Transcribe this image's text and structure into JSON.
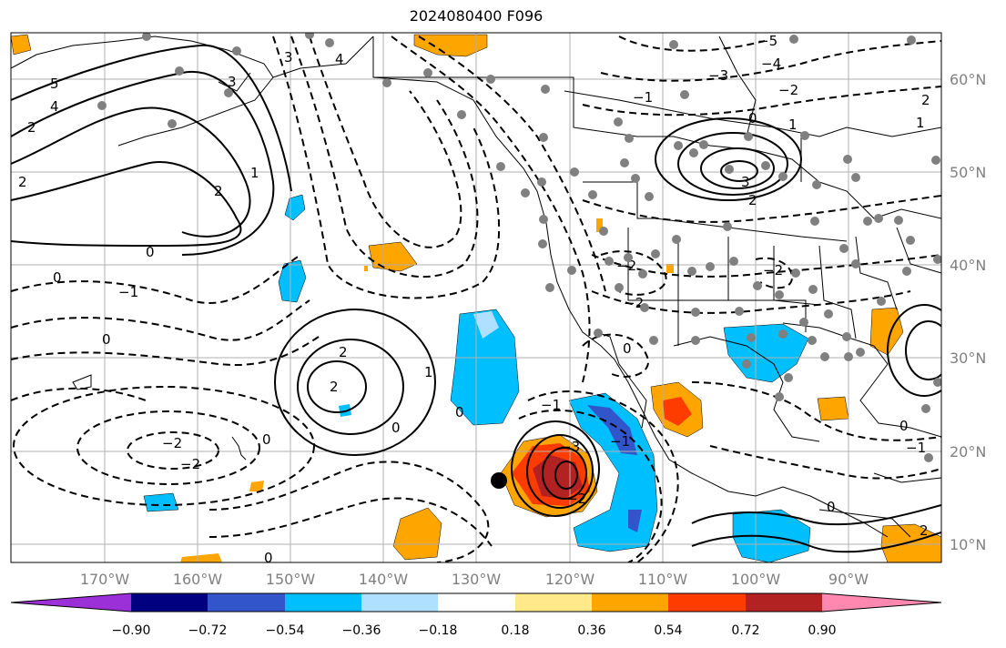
{
  "title": "2024080400 F096",
  "lat_labels": [
    "60°N",
    "50°N",
    "40°N",
    "30°N",
    "20°N",
    "10°N"
  ],
  "lon_labels": [
    "170°W",
    "160°W",
    "150°W",
    "140°W",
    "130°W",
    "120°W",
    "110°W",
    "100°W",
    "90°W"
  ],
  "colorbar": {
    "ticks": [
      "−0.90",
      "−0.72",
      "−0.54",
      "−0.36",
      "−0.18",
      "0.18",
      "0.36",
      "0.54",
      "0.72",
      "0.90"
    ],
    "colors": [
      "#9b30d9",
      "#000080",
      "#3355cc",
      "#00bfff",
      "#b0e0ff",
      "#ffffff",
      "#ffe98a",
      "#ffa500",
      "#ff3c00",
      "#b22222",
      "#ff88b0"
    ]
  },
  "contour_labels": [
    "5",
    "4",
    "3",
    "2",
    "2",
    "2",
    "1",
    "0",
    "0",
    "−1",
    "0",
    "−2",
    "−2",
    "2",
    "2",
    "1",
    "0",
    "0",
    "−3",
    "−2",
    "−1",
    "3",
    "0",
    "−1",
    "0",
    "−5",
    "−4",
    "−3",
    "−2",
    "−1",
    "0",
    "1",
    "2",
    "3",
    "−2",
    "−2",
    "−2",
    "0",
    "0",
    "1",
    "0",
    "2",
    "2",
    "−1",
    "4"
  ],
  "colors": {
    "grid": "#b0b0b0",
    "coast": "#000000",
    "dot": "#808080",
    "marker": "#000000"
  }
}
